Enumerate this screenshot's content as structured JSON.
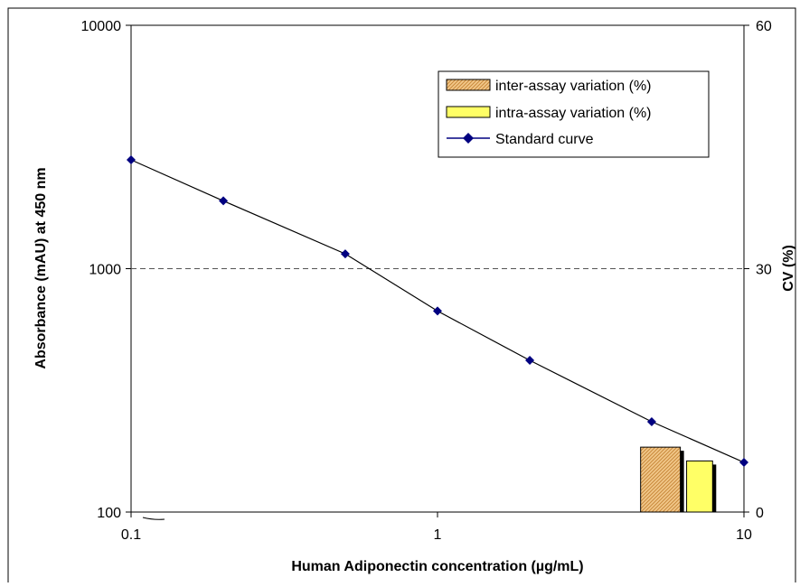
{
  "chart_data": {
    "type": "line",
    "title": "",
    "xlabel": "Human Adiponectin concentration (µg/mL)",
    "ylabel": "Absorbance (mAU) at 450 nm",
    "y2label": "CV (%)",
    "x_scale": "log",
    "y_scale": "log",
    "xlim": [
      0.1,
      10
    ],
    "ylim": [
      100,
      10000
    ],
    "y2lim": [
      0,
      60
    ],
    "grid": "horizontal dashed line at 1000",
    "legend_position": "top-right",
    "x_ticks": [
      "0.1",
      "1",
      "10"
    ],
    "y_ticks": [
      "100",
      "1000",
      "10000"
    ],
    "y2_ticks": [
      "0",
      "30",
      "60"
    ],
    "legend": [
      {
        "label": "inter-assay variation (%)",
        "kind": "hatched-bar",
        "color": "#e8b86a"
      },
      {
        "label": "intra-assay variation (%)",
        "kind": "bar",
        "color": "#ffff66"
      },
      {
        "label": "Standard curve",
        "kind": "line-marker",
        "color": "#000080"
      }
    ],
    "series": [
      {
        "name": "Standard curve",
        "axis": "left",
        "x": [
          0.1,
          0.2,
          0.5,
          1,
          2,
          5,
          10
        ],
        "y": [
          2800,
          1900,
          1150,
          670,
          420,
          235,
          160
        ],
        "marker_color": "#000080",
        "line_color": "#000000"
      },
      {
        "name": "inter-assay variation (%)",
        "axis": "right",
        "type": "bar",
        "value": 8.0,
        "color": "#e8b86a"
      },
      {
        "name": "intra-assay variation (%)",
        "axis": "right",
        "type": "bar",
        "value": 6.3,
        "color": "#ffff66"
      }
    ]
  }
}
